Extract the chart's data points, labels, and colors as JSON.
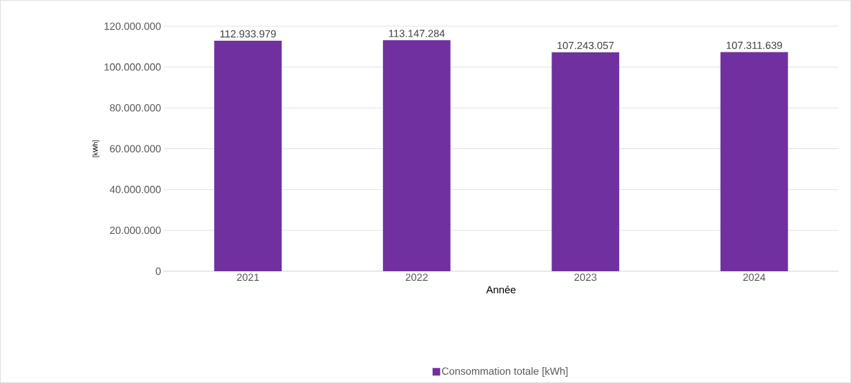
{
  "chart_data": {
    "type": "bar",
    "xlabel": "Année",
    "ylabel": "[kWh]",
    "categories": [
      "2021",
      "2022",
      "2023",
      "2024"
    ],
    "series": [
      {
        "name": "Consommation totale [kWh]",
        "color": "#7030a0",
        "values": [
          112933979,
          113147284,
          107243057,
          107311639
        ],
        "value_labels": [
          "112.933.979",
          "113.147.284",
          "107.243.057",
          "107.311.639"
        ]
      }
    ],
    "ylim": [
      0,
      120000000
    ],
    "yticks": [
      0,
      {
        "value": 20000000,
        "label": "20.000.000"
      },
      {
        "value": 40000000,
        "label": "40.000.000"
      },
      {
        "value": 60000000,
        "label": "60.000.000"
      },
      {
        "value": 80000000,
        "label": "80.000.000"
      },
      {
        "value": 100000000,
        "label": "100.000.000"
      },
      {
        "value": 120000000,
        "label": "120.000.000"
      }
    ],
    "grid": "y",
    "legend": "bottom"
  }
}
